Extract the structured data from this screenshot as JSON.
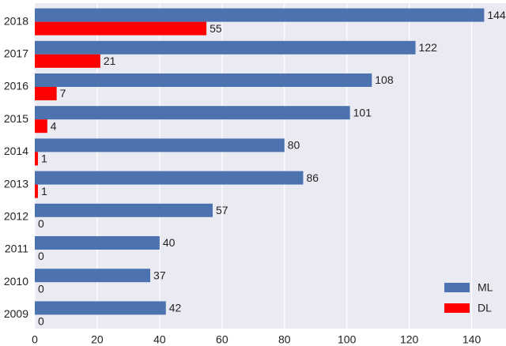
{
  "chart_data": {
    "type": "hbar",
    "categories": [
      "2018",
      "2017",
      "2016",
      "2015",
      "2014",
      "2013",
      "2012",
      "2011",
      "2010",
      "2009"
    ],
    "series": [
      {
        "name": "ML",
        "color": "#4c72b0",
        "values": [
          144,
          122,
          108,
          101,
          80,
          86,
          57,
          40,
          37,
          42
        ]
      },
      {
        "name": "DL",
        "color": "#ff0000",
        "values": [
          55,
          21,
          7,
          4,
          1,
          1,
          0,
          0,
          0,
          0
        ]
      }
    ],
    "xlim": [
      0,
      151
    ],
    "xticks": [
      0,
      20,
      40,
      60,
      80,
      100,
      120,
      140
    ],
    "grid": true,
    "legend": "lower right"
  }
}
